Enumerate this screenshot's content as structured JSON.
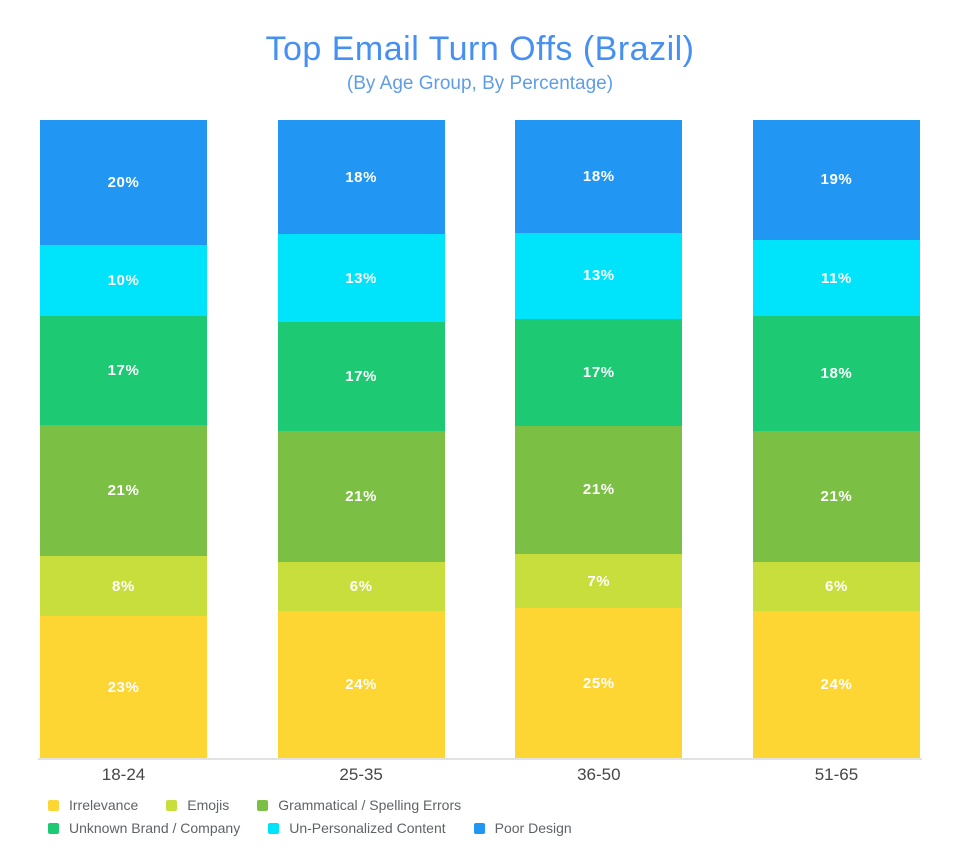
{
  "title": "Top Email Turn Offs (Brazil)",
  "subtitle": "(By Age Group, By Percentage)",
  "colors": {
    "title_text": "#4590F2",
    "subtitle_text": "#5F9DE9",
    "axis_line": "#E2E2E2",
    "axis_label_text": "#474747",
    "legend_text": "#5F6368",
    "segment_label_text": "#FFFFFF"
  },
  "chart_data": {
    "type": "bar",
    "stacked": true,
    "orientation": "vertical",
    "title": "Top Email Turn Offs (Brazil)",
    "subtitle": "(By Age Group, By Percentage)",
    "xlabel": "",
    "ylabel": "",
    "grid": false,
    "value_suffix": "%",
    "categories": [
      "18-24",
      "25-35",
      "36-50",
      "51-65"
    ],
    "series": [
      {
        "name": "Irrelevance",
        "color": "#FDD634",
        "values": [
          23,
          24,
          25,
          24
        ]
      },
      {
        "name": "Emojis",
        "color": "#C7DE3C",
        "values": [
          8,
          6,
          7,
          6
        ]
      },
      {
        "name": "Grammatical / Spelling Errors",
        "color": "#7CBF45",
        "values": [
          21,
          21,
          21,
          21
        ]
      },
      {
        "name": "Unknown Brand / Company",
        "color": "#1DC973",
        "values": [
          17,
          17,
          17,
          18
        ]
      },
      {
        "name": "Un-Personalized Content",
        "color": "#00E4FB",
        "values": [
          10,
          13,
          13,
          11
        ]
      },
      {
        "name": "Poor Design",
        "color": "#2196F3",
        "values": [
          20,
          18,
          18,
          19
        ]
      }
    ],
    "stack_order_bottom_to_top": [
      "Irrelevance",
      "Emojis",
      "Grammatical / Spelling Errors",
      "Unknown Brand / Company",
      "Un-Personalized Content",
      "Poor Design"
    ],
    "legend_position": "bottom-left",
    "legend_rows": [
      [
        "Irrelevance",
        "Emojis",
        "Grammatical / Spelling Errors"
      ],
      [
        "Unknown Brand / Company",
        "Un-Personalized Content",
        "Poor Design"
      ]
    ]
  }
}
